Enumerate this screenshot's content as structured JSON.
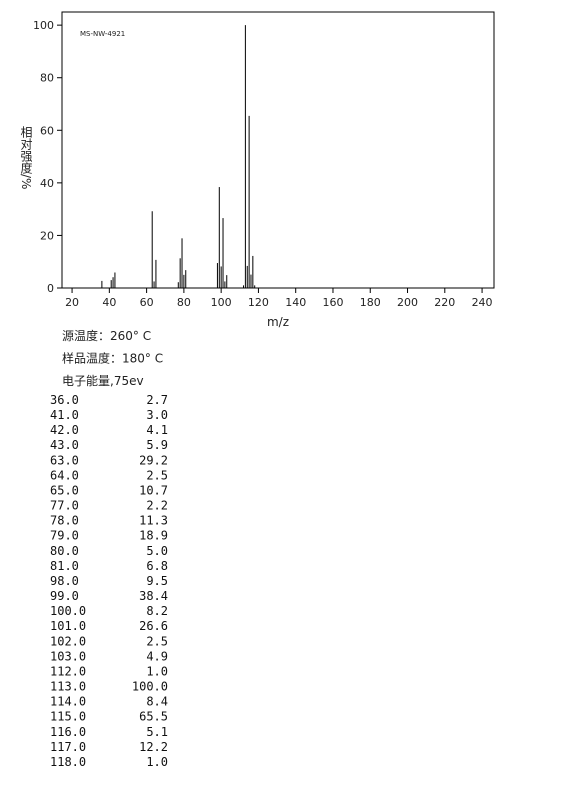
{
  "chart_data": {
    "type": "bar",
    "annotation": "MS-NW-4921",
    "y_label": "相对强度/%",
    "x_label": "m/z",
    "x": [
      36,
      41,
      42,
      43,
      63,
      64,
      65,
      77,
      78,
      79,
      80,
      81,
      98,
      99,
      100,
      101,
      102,
      103,
      112,
      113,
      114,
      115,
      116,
      117,
      118
    ],
    "values": [
      2.7,
      3.0,
      4.1,
      5.9,
      29.2,
      2.5,
      10.7,
      2.2,
      11.3,
      18.9,
      5.0,
      6.8,
      9.5,
      38.4,
      8.2,
      26.6,
      2.5,
      4.9,
      1.0,
      100.0,
      8.4,
      65.5,
      5.1,
      12.2,
      1.0
    ],
    "color": "#000000",
    "xlim": [
      14.6,
      246.4
    ],
    "ylim": [
      0,
      105
    ],
    "xticks": [
      20,
      40,
      60,
      80,
      100,
      120,
      140,
      160,
      180,
      200,
      220,
      240
    ],
    "yticks": [
      0,
      20,
      40,
      60,
      80,
      100
    ]
  },
  "info": [
    "源温度：260° C",
    "样品温度：180° C",
    "电子能量,75ev"
  ],
  "table": {
    "rows": [
      [
        "36.0",
        "2.7"
      ],
      [
        "41.0",
        "3.0"
      ],
      [
        "42.0",
        "4.1"
      ],
      [
        "43.0",
        "5.9"
      ],
      [
        "63.0",
        "29.2"
      ],
      [
        "64.0",
        "2.5"
      ],
      [
        "65.0",
        "10.7"
      ],
      [
        "77.0",
        "2.2"
      ],
      [
        "78.0",
        "11.3"
      ],
      [
        "79.0",
        "18.9"
      ],
      [
        "80.0",
        "5.0"
      ],
      [
        "81.0",
        "6.8"
      ],
      [
        "98.0",
        "9.5"
      ],
      [
        "99.0",
        "38.4"
      ],
      [
        "100.0",
        "8.2"
      ],
      [
        "101.0",
        "26.6"
      ],
      [
        "102.0",
        "2.5"
      ],
      [
        "103.0",
        "4.9"
      ],
      [
        "112.0",
        "1.0"
      ],
      [
        "113.0",
        "100.0"
      ],
      [
        "114.0",
        "8.4"
      ],
      [
        "115.0",
        "65.5"
      ],
      [
        "116.0",
        "5.1"
      ],
      [
        "117.0",
        "12.2"
      ],
      [
        "118.0",
        "1.0"
      ]
    ]
  }
}
